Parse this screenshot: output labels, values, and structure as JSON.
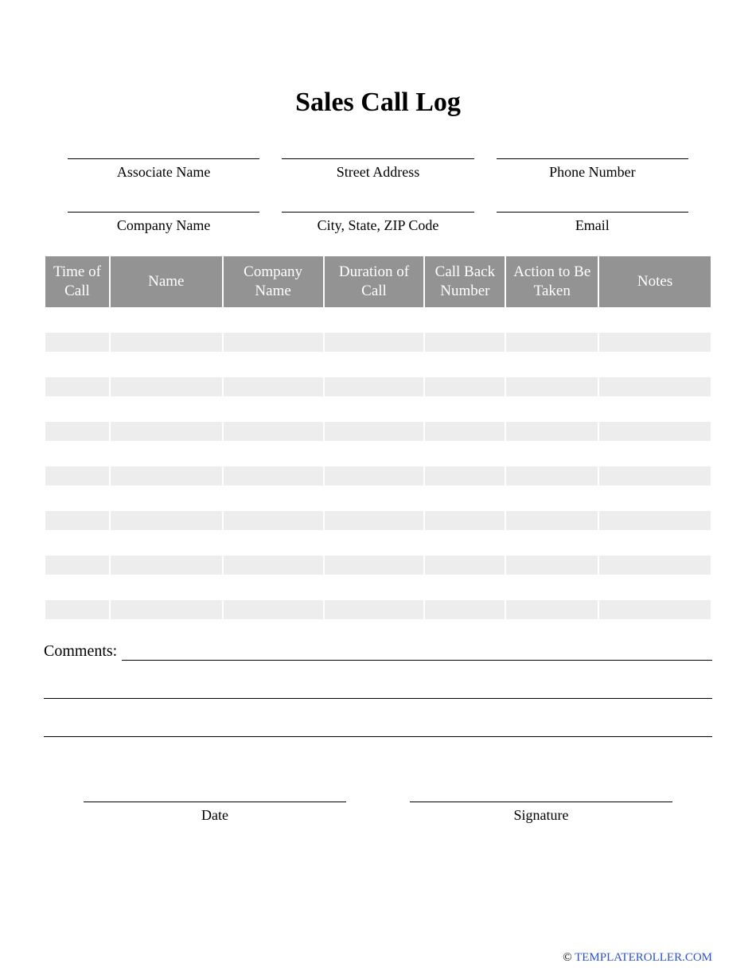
{
  "title": "Sales Call Log",
  "header_fields_row1": [
    {
      "label": "Associate Name"
    },
    {
      "label": "Street Address"
    },
    {
      "label": "Phone Number"
    }
  ],
  "header_fields_row2": [
    {
      "label": "Company Name"
    },
    {
      "label": "City, State, ZIP Code"
    },
    {
      "label": "Email"
    }
  ],
  "table": {
    "columns": [
      {
        "label": "Time of Call",
        "class": "col-time"
      },
      {
        "label": "Name",
        "class": "col-name"
      },
      {
        "label": "Company Name",
        "class": "col-company"
      },
      {
        "label": "Duration of Call",
        "class": "col-duration"
      },
      {
        "label": "Call Back Number",
        "class": "col-callback"
      },
      {
        "label": "Action to Be Taken",
        "class": "col-action"
      },
      {
        "label": "Notes",
        "class": "col-notes"
      }
    ],
    "header_bg": "#939393",
    "header_color": "#ffffff",
    "stripe_color": "#ededed",
    "row_pairs": 7
  },
  "comments_label": "Comments:",
  "sign": {
    "date_label": "Date",
    "signature_label": "Signature"
  },
  "footer": {
    "copyright": "©",
    "site": "TEMPLATEROLLER.COM"
  }
}
